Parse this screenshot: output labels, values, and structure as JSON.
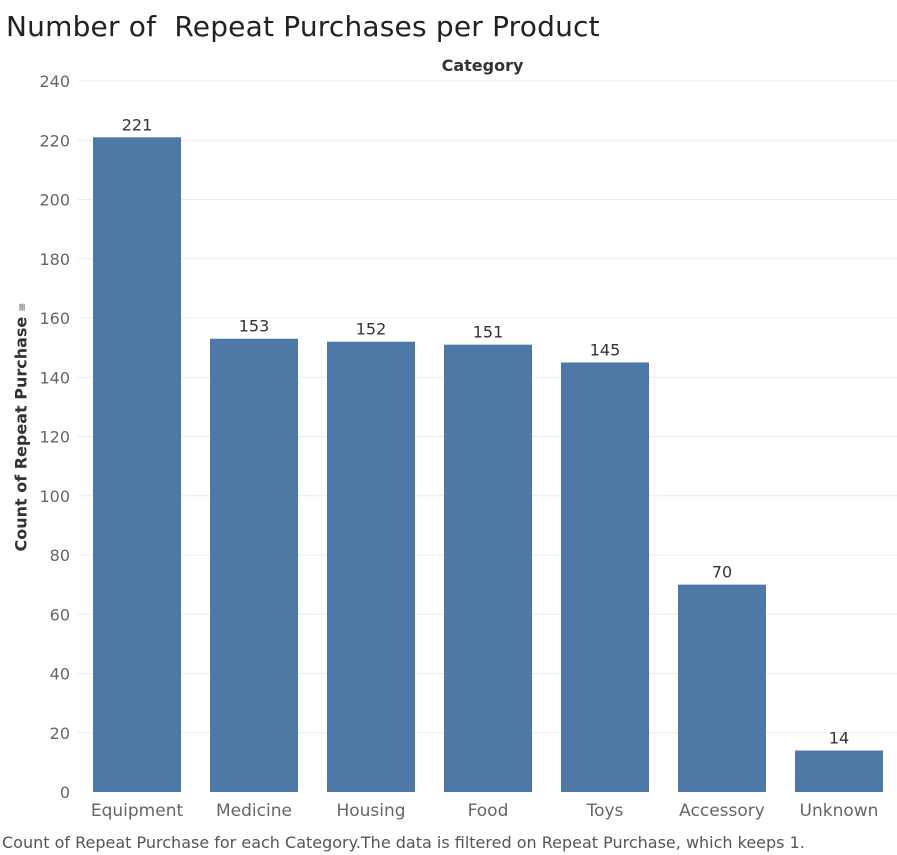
{
  "title": "Number of  Repeat Purchases per Product",
  "caption": "Count of Repeat Purchase for each Category.The data is filtered on Repeat Purchase, which keeps 1.",
  "colors": {
    "bar": "#4e79a7",
    "grid": "#ececec",
    "tick_text": "#666666",
    "label_text": "#333333"
  },
  "icons": {
    "y_title_icon": "filter-icon"
  },
  "chart_data": {
    "type": "bar",
    "header_label": "Category",
    "ylabel": "Count of Repeat Purchase",
    "xlabel": "",
    "ylim": [
      0,
      240
    ],
    "yticks": [
      0,
      20,
      40,
      60,
      80,
      100,
      120,
      140,
      160,
      180,
      200,
      220,
      240
    ],
    "categories": [
      "Equipment",
      "Medicine",
      "Housing",
      "Food",
      "Toys",
      "Accessory",
      "Unknown"
    ],
    "values": [
      221,
      153,
      152,
      151,
      145,
      70,
      14
    ],
    "data_labels": true,
    "grid": true,
    "legend": "none"
  }
}
